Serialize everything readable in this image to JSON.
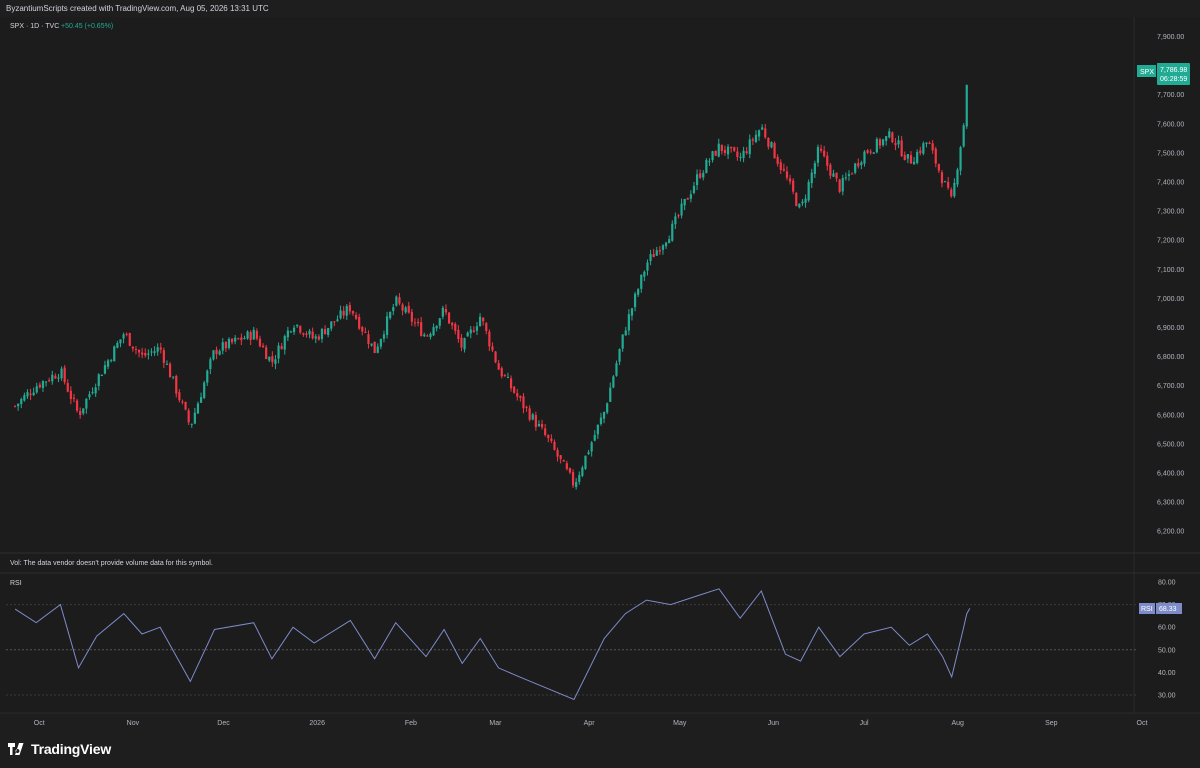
{
  "header": {
    "credit": "ByzantiumScripts created with TradingView.com, Aug 05, 2026 13:31 UTC"
  },
  "legend": {
    "symbol_line": "SPX · 1D · TVC",
    "change": "+50.45 (+0.65%)"
  },
  "price_label": {
    "symbol": "SPX",
    "price": "7,786.98",
    "countdown": "06:28:59"
  },
  "volume_note": "Vol: The data vendor doesn't provide volume data for this symbol.",
  "rsi_label": "RSI",
  "rsi_value_label": {
    "symbol": "RSI",
    "value": "68.33"
  },
  "footer": {
    "brand": "TradingView"
  },
  "colors": {
    "up": "#22ab94",
    "down": "#f23645",
    "rsi_line": "#7e8bc9",
    "price_tag": "#22ab94",
    "rsi_tag": "#7e8bc9"
  },
  "chart_data": [
    {
      "type": "candlestick",
      "symbol": "SPX",
      "interval": "1D",
      "price_axis_ticks": [
        "7,900.00",
        "7,800.00",
        "7,700.00",
        "7,600.00",
        "7,500.00",
        "7,400.00",
        "7,300.00",
        "7,200.00",
        "7,100.00",
        "7,000.00",
        "6,900.00",
        "6,800.00",
        "6,700.00",
        "6,600.00",
        "6,500.00",
        "6,400.00",
        "6,300.00",
        "6,200.00"
      ],
      "ylim": [
        6150,
        7950
      ],
      "x_axis_ticks": [
        "Oct",
        "Nov",
        "Dec",
        "2026",
        "Feb",
        "Mar",
        "Apr",
        "May",
        "Jun",
        "Jul",
        "Aug",
        "Sep",
        "Oct"
      ],
      "close_path": [
        [
          "2025-09-23",
          6630
        ],
        [
          "2025-09-30",
          6700
        ],
        [
          "2025-10-08",
          6750
        ],
        [
          "2025-10-14",
          6600
        ],
        [
          "2025-10-20",
          6720
        ],
        [
          "2025-10-29",
          6880
        ],
        [
          "2025-11-04",
          6800
        ],
        [
          "2025-11-10",
          6830
        ],
        [
          "2025-11-20",
          6560
        ],
        [
          "2025-11-28",
          6820
        ],
        [
          "2025-12-11",
          6880
        ],
        [
          "2025-12-17",
          6780
        ],
        [
          "2025-12-24",
          6920
        ],
        [
          "2025-12-31",
          6860
        ],
        [
          "2026-01-12",
          6970
        ],
        [
          "2026-01-20",
          6820
        ],
        [
          "2026-01-27",
          6990
        ],
        [
          "2026-02-06",
          6870
        ],
        [
          "2026-02-12",
          6960
        ],
        [
          "2026-02-18",
          6830
        ],
        [
          "2026-02-24",
          6940
        ],
        [
          "2026-03-02",
          6760
        ],
        [
          "2026-03-09",
          6650
        ],
        [
          "2026-03-18",
          6520
        ],
        [
          "2026-03-27",
          6360
        ],
        [
          "2026-04-06",
          6610
        ],
        [
          "2026-04-13",
          6900
        ],
        [
          "2026-04-20",
          7120
        ],
        [
          "2026-04-28",
          7230
        ],
        [
          "2026-05-07",
          7420
        ],
        [
          "2026-05-14",
          7520
        ],
        [
          "2026-05-21",
          7480
        ],
        [
          "2026-05-28",
          7590
        ],
        [
          "2026-06-05",
          7420
        ],
        [
          "2026-06-10",
          7300
        ],
        [
          "2026-06-16",
          7510
        ],
        [
          "2026-06-23",
          7380
        ],
        [
          "2026-07-01",
          7500
        ],
        [
          "2026-07-10",
          7560
        ],
        [
          "2026-07-16",
          7470
        ],
        [
          "2026-07-22",
          7540
        ],
        [
          "2026-07-27",
          7410
        ],
        [
          "2026-07-30",
          7330
        ],
        [
          "2026-08-03",
          7600
        ],
        [
          "2026-08-04",
          7740
        ],
        [
          "2026-08-05",
          7787
        ]
      ],
      "last_price": 7786.98,
      "change": "+50.45 (+0.65%)"
    },
    {
      "type": "line",
      "name": "RSI",
      "ylim": [
        25,
        83
      ],
      "axis_ticks": [
        "80.00",
        "70.00",
        "60.00",
        "50.00",
        "40.00",
        "30.00"
      ],
      "midline": 50,
      "points": [
        [
          "2025-09-23",
          68
        ],
        [
          "2025-09-30",
          62
        ],
        [
          "2025-10-08",
          70
        ],
        [
          "2025-10-14",
          42
        ],
        [
          "2025-10-20",
          56
        ],
        [
          "2025-10-29",
          66
        ],
        [
          "2025-11-04",
          57
        ],
        [
          "2025-11-10",
          60
        ],
        [
          "2025-11-20",
          36
        ],
        [
          "2025-11-28",
          59
        ],
        [
          "2025-12-11",
          62
        ],
        [
          "2025-12-17",
          46
        ],
        [
          "2025-12-24",
          60
        ],
        [
          "2025-12-31",
          53
        ],
        [
          "2026-01-12",
          63
        ],
        [
          "2026-01-20",
          46
        ],
        [
          "2026-01-27",
          62
        ],
        [
          "2026-02-06",
          47
        ],
        [
          "2026-02-12",
          59
        ],
        [
          "2026-02-18",
          44
        ],
        [
          "2026-02-24",
          55
        ],
        [
          "2026-03-02",
          42
        ],
        [
          "2026-03-09",
          38
        ],
        [
          "2026-03-18",
          33
        ],
        [
          "2026-03-27",
          28
        ],
        [
          "2026-04-06",
          55
        ],
        [
          "2026-04-13",
          66
        ],
        [
          "2026-04-20",
          72
        ],
        [
          "2026-04-28",
          70
        ],
        [
          "2026-05-07",
          74
        ],
        [
          "2026-05-14",
          77
        ],
        [
          "2026-05-21",
          64
        ],
        [
          "2026-05-28",
          76
        ],
        [
          "2026-06-05",
          48
        ],
        [
          "2026-06-10",
          45
        ],
        [
          "2026-06-16",
          60
        ],
        [
          "2026-06-23",
          47
        ],
        [
          "2026-07-01",
          57
        ],
        [
          "2026-07-10",
          60
        ],
        [
          "2026-07-16",
          52
        ],
        [
          "2026-07-22",
          57
        ],
        [
          "2026-07-27",
          47
        ],
        [
          "2026-07-30",
          38
        ],
        [
          "2026-08-03",
          60
        ],
        [
          "2026-08-04",
          66
        ],
        [
          "2026-08-05",
          68.33
        ]
      ],
      "last_value": 68.33
    }
  ]
}
